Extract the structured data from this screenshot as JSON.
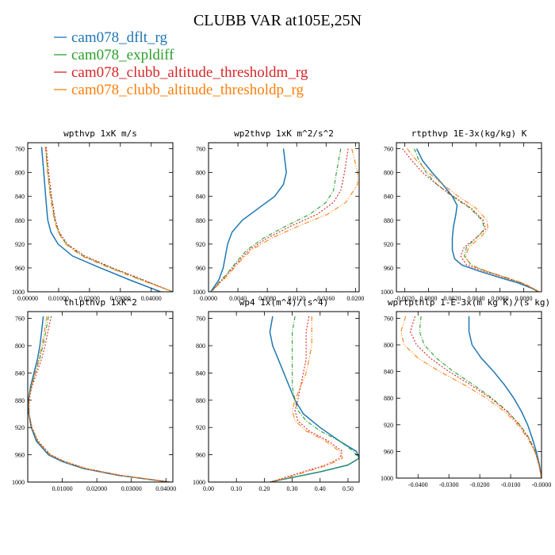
{
  "figure": {
    "title": "CLUBB VAR at105E,25N",
    "legend": [
      {
        "label": "cam078_dflt_rg",
        "color": "#1f77b4"
      },
      {
        "label": "cam078_expldiff",
        "color": "#2ca02c"
      },
      {
        "label": "cam078_clubb_altitude_thresholdm_rg",
        "color": "#d62728"
      },
      {
        "label": "cam078_clubb_altitude_thresholdp_rg",
        "color": "#ff7f0e"
      }
    ]
  },
  "chart_data": [
    {
      "type": "line",
      "title": "wpthvp  1xK m/s",
      "xlim": [
        0,
        0.047
      ],
      "ylim": [
        1000,
        750
      ],
      "xticks": [
        "0.00000",
        "0.01000",
        "0.02000",
        "0.03000",
        "0.04000"
      ],
      "xtick_values": [
        0,
        0.01,
        0.02,
        0.03,
        0.04
      ],
      "yticks": [
        "760",
        "800",
        "840",
        "880",
        "920",
        "960",
        "1000"
      ],
      "ytick_values": [
        760,
        800,
        840,
        880,
        920,
        960,
        1000
      ],
      "series": [
        {
          "p": [
            757,
            800,
            840,
            870,
            880,
            900,
            920,
            940,
            960,
            980,
            1000
          ],
          "x": [
            0.0045,
            0.0052,
            0.0058,
            0.0063,
            0.0065,
            0.0075,
            0.0098,
            0.0145,
            0.0235,
            0.033,
            0.043
          ]
        },
        {
          "p": [
            757,
            800,
            840,
            880,
            900,
            920,
            940,
            960,
            980,
            1000
          ],
          "x": [
            0.0058,
            0.0065,
            0.0075,
            0.0088,
            0.01,
            0.0125,
            0.018,
            0.027,
            0.037,
            0.047
          ]
        },
        {
          "p": [
            757,
            800,
            840,
            880,
            900,
            920,
            940,
            960,
            980,
            1000
          ],
          "x": [
            0.006,
            0.0068,
            0.0077,
            0.009,
            0.0102,
            0.0128,
            0.0185,
            0.0275,
            0.0375,
            0.047
          ]
        },
        {
          "p": [
            757,
            800,
            840,
            880,
            900,
            920,
            940,
            960,
            980,
            1000
          ],
          "x": [
            0.0057,
            0.0064,
            0.0073,
            0.0086,
            0.0098,
            0.0122,
            0.0175,
            0.0265,
            0.0365,
            0.047
          ]
        }
      ]
    },
    {
      "type": "line",
      "title": "wp2thvp  1xK m^2/s^2",
      "xlim": [
        0,
        0.0205
      ],
      "ylim": [
        1000,
        750
      ],
      "xticks": [
        "0.0000",
        "0.0040",
        "0.0080",
        "0.0120",
        "0.0160",
        "0.0200"
      ],
      "xtick_values": [
        0,
        0.004,
        0.008,
        0.012,
        0.016,
        0.02
      ],
      "yticks": [
        "760",
        "800",
        "840",
        "880",
        "920",
        "960",
        "1000"
      ],
      "ytick_values": [
        760,
        800,
        840,
        880,
        920,
        960,
        1000
      ],
      "series": [
        {
          "p": [
            760,
            800,
            820,
            840,
            860,
            880,
            900,
            920,
            940,
            960,
            980,
            1000
          ],
          "x": [
            0.0102,
            0.0106,
            0.0102,
            0.009,
            0.0068,
            0.0046,
            0.0032,
            0.0026,
            0.0023,
            0.002,
            0.0014,
            0.0003
          ]
        },
        {
          "p": [
            760,
            800,
            830,
            850,
            870,
            890,
            910,
            930,
            950,
            970,
            990,
            1000
          ],
          "x": [
            0.018,
            0.0174,
            0.017,
            0.016,
            0.0138,
            0.0105,
            0.0075,
            0.0052,
            0.0038,
            0.0025,
            0.001,
            0.0004
          ]
        },
        {
          "p": [
            760,
            800,
            830,
            850,
            870,
            890,
            910,
            930,
            950,
            970,
            990,
            1000
          ],
          "x": [
            0.019,
            0.0185,
            0.018,
            0.017,
            0.0148,
            0.0112,
            0.008,
            0.0055,
            0.004,
            0.0026,
            0.0011,
            0.0004
          ]
        },
        {
          "p": [
            760,
            800,
            820,
            850,
            870,
            890,
            910,
            930,
            950,
            970,
            990,
            1000
          ],
          "x": [
            0.0195,
            0.0203,
            0.0203,
            0.0187,
            0.0162,
            0.0122,
            0.0086,
            0.0058,
            0.0042,
            0.0028,
            0.0012,
            0.0004
          ]
        }
      ]
    },
    {
      "type": "line",
      "title": "rtpthvp  1E-3x(kg/kg) K",
      "xlim": [
        -0.0027,
        0.0095
      ],
      "ylim": [
        1000,
        750
      ],
      "xticks": [
        "-0.0020",
        "0.0000",
        "0.0020",
        "0.0040",
        "0.0060",
        "0.0080"
      ],
      "xtick_values": [
        -0.002,
        0,
        0.002,
        0.004,
        0.006,
        0.008
      ],
      "yticks": [
        "760",
        "800",
        "840",
        "880",
        "920",
        "960",
        "1000"
      ],
      "ytick_values": [
        760,
        800,
        840,
        880,
        920,
        960,
        1000
      ],
      "series": [
        {
          "p": [
            760,
            780,
            800,
            820,
            840,
            855,
            870,
            890,
            910,
            930,
            945,
            955,
            965,
            975,
            985,
            995,
            1000
          ],
          "x": [
            -0.001,
            -0.0005,
            0.0003,
            0.0012,
            0.002,
            0.0024,
            0.0023,
            0.0021,
            0.002,
            0.002,
            0.0022,
            0.0028,
            0.0042,
            0.0058,
            0.0075,
            0.0088,
            0.0092
          ]
        },
        {
          "p": [
            760,
            780,
            800,
            820,
            840,
            860,
            880,
            895,
            910,
            925,
            940,
            955,
            965,
            975,
            985,
            995,
            1000
          ],
          "x": [
            -0.0012,
            -0.0008,
            -0.0002,
            0.0007,
            0.002,
            0.0035,
            0.0045,
            0.0047,
            0.004,
            0.0032,
            0.003,
            0.0036,
            0.0048,
            0.0063,
            0.0078,
            0.0088,
            0.0092
          ]
        },
        {
          "p": [
            760,
            780,
            800,
            820,
            840,
            860,
            880,
            895,
            910,
            925,
            940,
            955,
            965,
            975,
            985,
            995,
            1000
          ],
          "x": [
            -0.0022,
            -0.0014,
            -0.0005,
            0.0007,
            0.0021,
            0.0036,
            0.0046,
            0.0048,
            0.004,
            0.003,
            0.0027,
            0.0032,
            0.0046,
            0.0062,
            0.0078,
            0.0088,
            0.0092
          ]
        },
        {
          "p": [
            760,
            780,
            800,
            820,
            840,
            860,
            880,
            895,
            910,
            925,
            940,
            955,
            965,
            975,
            985,
            995,
            1000
          ],
          "x": [
            -0.0018,
            -0.001,
            0.0,
            0.0012,
            0.0025,
            0.004,
            0.0049,
            0.005,
            0.0043,
            0.0034,
            0.0031,
            0.0035,
            0.0048,
            0.0064,
            0.0079,
            0.0089,
            0.0093
          ]
        }
      ]
    },
    {
      "type": "line",
      "title": "thlpthvp  1xK^2",
      "xlim": [
        0,
        0.042
      ],
      "ylim": [
        1000,
        750
      ],
      "xticks": [
        "0.01000",
        "0.02000",
        "0.03000",
        "0.04000"
      ],
      "xtick_values": [
        0.01,
        0.02,
        0.03,
        0.04
      ],
      "yticks": [
        "760",
        "800",
        "840",
        "880",
        "920",
        "960",
        "1000"
      ],
      "ytick_values": [
        760,
        800,
        840,
        880,
        920,
        960,
        1000
      ],
      "series": [
        {
          "p": [
            757,
            780,
            800,
            820,
            840,
            860,
            880,
            900,
            920,
            940,
            960,
            970,
            980,
            990,
            1000
          ],
          "x": [
            0.0045,
            0.004,
            0.0035,
            0.0028,
            0.0018,
            0.0008,
            0.0002,
            0.0003,
            0.001,
            0.0025,
            0.006,
            0.01,
            0.016,
            0.026,
            0.041
          ]
        },
        {
          "p": [
            757,
            780,
            800,
            820,
            840,
            860,
            880,
            900,
            920,
            940,
            960,
            970,
            980,
            990,
            1000
          ],
          "x": [
            0.006,
            0.0052,
            0.0044,
            0.0034,
            0.0022,
            0.001,
            0.0003,
            0.0004,
            0.0012,
            0.0028,
            0.0064,
            0.0105,
            0.0165,
            0.0265,
            0.041
          ]
        },
        {
          "p": [
            757,
            780,
            800,
            820,
            840,
            860,
            880,
            900,
            920,
            940,
            960,
            970,
            980,
            990,
            1000
          ],
          "x": [
            0.0068,
            0.0058,
            0.005,
            0.004,
            0.0026,
            0.0012,
            0.0004,
            0.0004,
            0.0012,
            0.003,
            0.0066,
            0.0108,
            0.0168,
            0.0268,
            0.041
          ]
        },
        {
          "p": [
            757,
            780,
            800,
            820,
            840,
            860,
            880,
            900,
            920,
            940,
            960,
            970,
            980,
            990,
            1000
          ],
          "x": [
            0.0055,
            0.0048,
            0.0041,
            0.0032,
            0.0021,
            0.001,
            0.0003,
            0.0004,
            0.0012,
            0.0028,
            0.0064,
            0.0105,
            0.0165,
            0.0265,
            0.041
          ]
        }
      ]
    },
    {
      "type": "line",
      "title": "wp4  1x(m^4)/(s^4)",
      "xlim": [
        0,
        0.54
      ],
      "ylim": [
        1000,
        750
      ],
      "xticks": [
        "0.00",
        "0.10",
        "0.20",
        "0.30",
        "0.40",
        "0.50"
      ],
      "xtick_values": [
        0,
        0.1,
        0.2,
        0.3,
        0.4,
        0.5
      ],
      "yticks": [
        "760",
        "800",
        "840",
        "880",
        "920",
        "960",
        "1000"
      ],
      "ytick_values": [
        760,
        800,
        840,
        880,
        920,
        960,
        1000
      ],
      "series": [
        {
          "p": [
            757,
            780,
            800,
            820,
            840,
            860,
            880,
            900,
            920,
            940,
            955,
            965,
            975,
            985,
            995,
            1000
          ],
          "x": [
            0.23,
            0.22,
            0.23,
            0.25,
            0.27,
            0.29,
            0.31,
            0.34,
            0.4,
            0.47,
            0.53,
            0.54,
            0.5,
            0.4,
            0.28,
            0.22
          ]
        },
        {
          "p": [
            757,
            780,
            800,
            820,
            840,
            860,
            880,
            895,
            910,
            925,
            940,
            955,
            965,
            975,
            985,
            995,
            1000
          ],
          "x": [
            0.31,
            0.3,
            0.3,
            0.3,
            0.3,
            0.3,
            0.31,
            0.32,
            0.35,
            0.4,
            0.47,
            0.52,
            0.54,
            0.5,
            0.4,
            0.28,
            0.22
          ]
        },
        {
          "p": [
            757,
            780,
            800,
            820,
            840,
            860,
            880,
            895,
            910,
            925,
            940,
            955,
            965,
            975,
            985,
            995,
            1000
          ],
          "x": [
            0.36,
            0.35,
            0.35,
            0.35,
            0.34,
            0.33,
            0.32,
            0.31,
            0.32,
            0.36,
            0.43,
            0.48,
            0.47,
            0.42,
            0.34,
            0.26,
            0.22
          ]
        },
        {
          "p": [
            757,
            780,
            800,
            820,
            840,
            860,
            880,
            895,
            910,
            925,
            940,
            955,
            965,
            975,
            985,
            995,
            1000
          ],
          "x": [
            0.37,
            0.37,
            0.37,
            0.36,
            0.35,
            0.33,
            0.31,
            0.3,
            0.31,
            0.35,
            0.42,
            0.47,
            0.48,
            0.43,
            0.35,
            0.27,
            0.22
          ]
        }
      ]
    },
    {
      "type": "line",
      "title": "wprtpthlp  1-E-3x(m kg K)/(s kg)",
      "xlim": [
        -0.047,
        0
      ],
      "ylim": [
        1000,
        750
      ],
      "xticks": [
        "-0.0400",
        "-0.0300",
        "-0.0200",
        "-0.0100",
        "-0.0000"
      ],
      "xtick_values": [
        -0.04,
        -0.03,
        -0.02,
        -0.01,
        0
      ],
      "yticks": [
        "760",
        "800",
        "840",
        "880",
        "920",
        "960",
        "1000"
      ],
      "ytick_values": [
        760,
        800,
        840,
        880,
        920,
        960,
        1000
      ],
      "series": [
        {
          "p": [
            757,
            780,
            800,
            820,
            840,
            860,
            880,
            900,
            920,
            940,
            960,
            980,
            1000
          ],
          "x": [
            -0.0235,
            -0.0235,
            -0.0225,
            -0.0195,
            -0.0155,
            -0.012,
            -0.009,
            -0.0065,
            -0.0045,
            -0.003,
            -0.0017,
            -0.0007,
            0.0
          ]
        },
        {
          "p": [
            757,
            780,
            800,
            820,
            840,
            860,
            880,
            900,
            920,
            940,
            960,
            980,
            1000
          ],
          "x": [
            -0.039,
            -0.0395,
            -0.038,
            -0.034,
            -0.0285,
            -0.022,
            -0.016,
            -0.011,
            -0.007,
            -0.004,
            -0.002,
            -0.0008,
            0.0
          ]
        },
        {
          "p": [
            757,
            780,
            800,
            820,
            840,
            860,
            880,
            900,
            920,
            940,
            960,
            980,
            1000
          ],
          "x": [
            -0.041,
            -0.0425,
            -0.0405,
            -0.036,
            -0.03,
            -0.023,
            -0.0165,
            -0.0112,
            -0.0072,
            -0.0042,
            -0.0021,
            -0.0008,
            0.0
          ]
        },
        {
          "p": [
            757,
            780,
            800,
            820,
            840,
            860,
            880,
            900,
            920,
            940,
            960,
            980,
            1000
          ],
          "x": [
            -0.044,
            -0.0455,
            -0.0445,
            -0.04,
            -0.033,
            -0.025,
            -0.0178,
            -0.012,
            -0.0077,
            -0.0045,
            -0.0022,
            -0.0009,
            0.0
          ]
        }
      ]
    }
  ]
}
